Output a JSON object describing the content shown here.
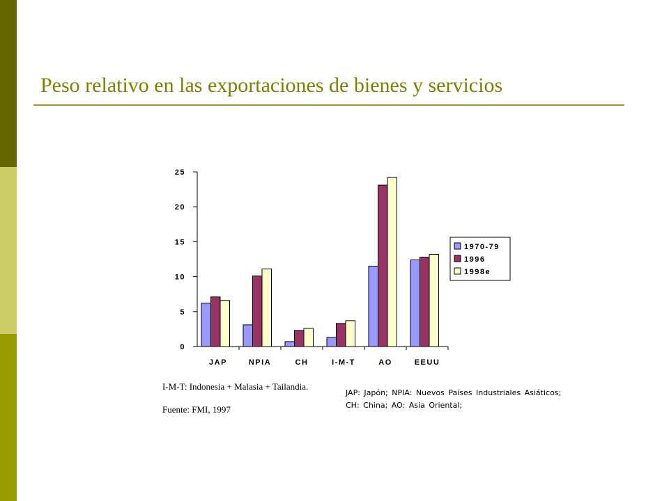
{
  "slide": {
    "title": "Peso relativo en las exportaciones de bienes y servicios",
    "colors": {
      "band_dark": "#666600",
      "band_light": "#cccc66",
      "band_mid": "#999900",
      "title": "#808000"
    }
  },
  "notes": {
    "imt": "I-M-T: Indonesia + Malasia + Tailandia.",
    "source": "Fuente: FMI, 1997",
    "abbrev_line1": "JAP: Japón; NPIA: Nuevos Países Industriales Asiáticos;",
    "abbrev_line2": "CH: China; AO: Asia Oriental;"
  },
  "chart_data": {
    "type": "bar",
    "title": "",
    "xlabel": "",
    "ylabel": "",
    "categories": [
      "JAP",
      "NPIA",
      "CH",
      "I-M-T",
      "AO",
      "EEUU"
    ],
    "series": [
      {
        "name": "1970-79",
        "color": "#9999ff",
        "values": [
          6.2,
          3.1,
          0.7,
          1.3,
          11.5,
          12.4
        ]
      },
      {
        "name": "1996",
        "color": "#993366",
        "values": [
          7.1,
          10.1,
          2.3,
          3.3,
          23.1,
          12.8
        ]
      },
      {
        "name": "1998e",
        "color": "#ffffcc",
        "values": [
          6.6,
          11.1,
          2.6,
          3.7,
          24.2,
          13.2
        ]
      }
    ],
    "yticks": [
      0,
      5,
      10,
      15,
      20,
      25
    ],
    "ylim": [
      0,
      25
    ],
    "grid": false,
    "legend": "right"
  }
}
